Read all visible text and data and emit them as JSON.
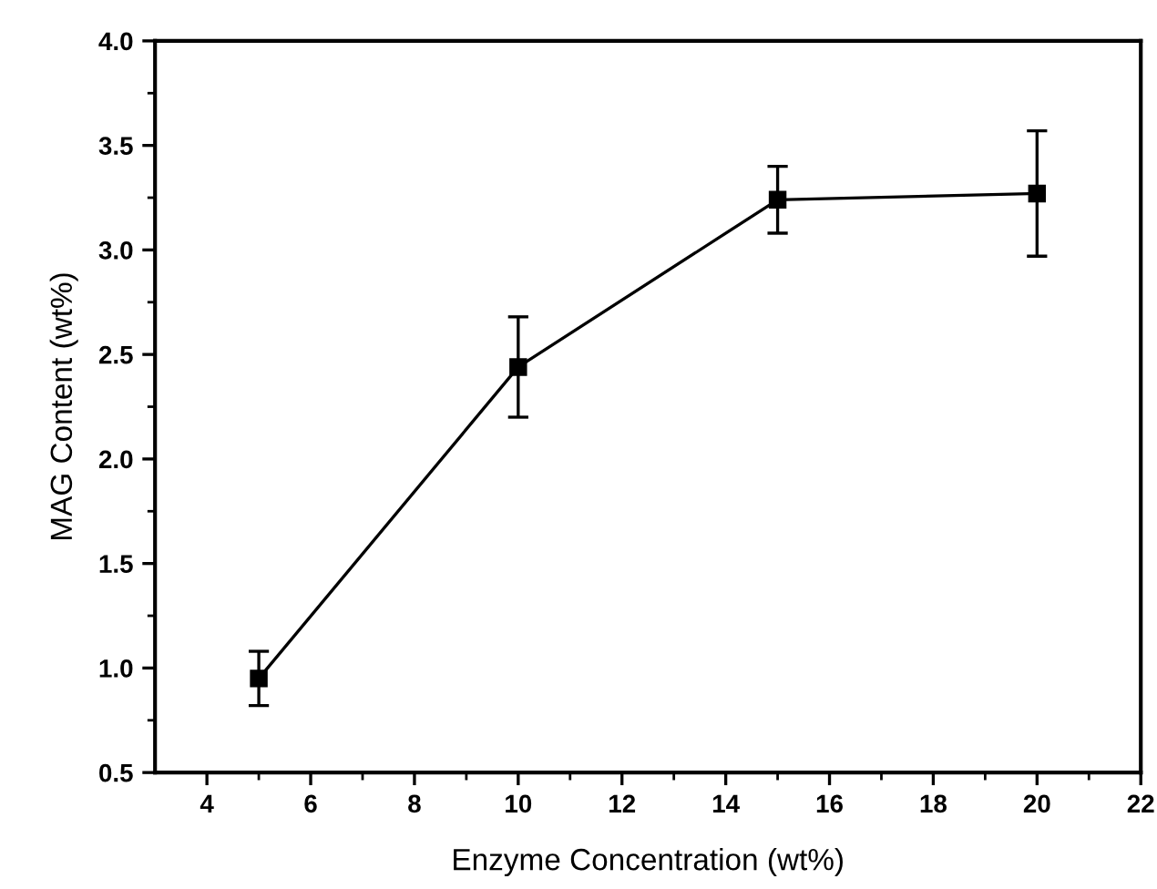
{
  "chart_data": {
    "type": "line",
    "xlabel": "Enzyme Concentration (wt%)",
    "ylabel": "MAG Content (wt%)",
    "x": [
      5,
      10,
      15,
      20
    ],
    "series": [
      {
        "color": "#000000",
        "values": [
          0.95,
          2.44,
          3.24,
          3.27
        ],
        "errors": [
          0.13,
          0.24,
          0.16,
          0.3
        ]
      }
    ],
    "xlim": [
      3,
      22
    ],
    "xticks": [
      4,
      6,
      8,
      10,
      12,
      14,
      16,
      18,
      20,
      22
    ],
    "ylim": [
      0.5,
      4.0
    ],
    "yticks": [
      {
        "value": 0.5,
        "label": "0.5"
      },
      {
        "value": 1.0,
        "label": "1.0"
      },
      {
        "value": 1.5,
        "label": "1.5"
      },
      {
        "value": 2.0,
        "label": "2.0"
      },
      {
        "value": 2.5,
        "label": "2.5"
      },
      {
        "value": 3.0,
        "label": "3.0"
      },
      {
        "value": 3.5,
        "label": "3.5"
      },
      {
        "value": 4.0,
        "label": "4.0"
      }
    ],
    "grid": false,
    "legend": false,
    "marker": "square",
    "line_style": "solid"
  }
}
